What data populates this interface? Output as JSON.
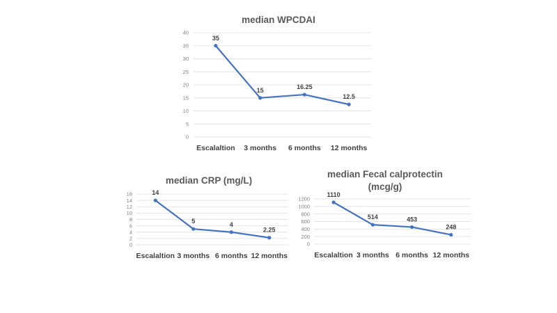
{
  "chart_data": [
    {
      "type": "line",
      "title": "median WPCDAI",
      "categories": [
        "Escalaltion",
        "3 months",
        "6 months",
        "12 months"
      ],
      "values": [
        35,
        15,
        16.25,
        12.5
      ],
      "data_labels": [
        "35",
        "15",
        "16.25",
        "12.5"
      ],
      "ylim": [
        0,
        40
      ],
      "yticks": [
        0,
        5,
        10,
        15,
        20,
        25,
        30,
        35,
        40
      ],
      "grid": true,
      "color": "#4472c4"
    },
    {
      "type": "line",
      "title": "median CRP (mg/L)",
      "categories": [
        "Escalaltion",
        "3 months",
        "6 months",
        "12 months"
      ],
      "values": [
        14,
        5,
        4,
        2.25
      ],
      "data_labels": [
        "14",
        "5",
        "4",
        "2.25"
      ],
      "ylim": [
        0,
        16
      ],
      "yticks": [
        0,
        2,
        4,
        6,
        8,
        10,
        12,
        14,
        16
      ],
      "grid": true,
      "color": "#4472c4"
    },
    {
      "type": "line",
      "title": [
        "median Fecal calprotectin",
        "(mcg/g)"
      ],
      "categories": [
        "Escalaltion",
        "3 months",
        "6 months",
        "12 months"
      ],
      "values": [
        1110,
        514,
        453,
        248
      ],
      "data_labels": [
        "1110",
        "514",
        "453",
        "248"
      ],
      "ylim": [
        0,
        1200
      ],
      "yticks": [
        0,
        200,
        400,
        600,
        800,
        1000,
        1200
      ],
      "grid": true,
      "color": "#4472c4"
    }
  ]
}
